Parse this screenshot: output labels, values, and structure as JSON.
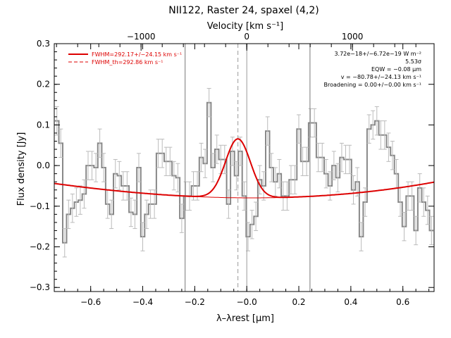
{
  "chart_data": {
    "type": "line",
    "title": "NII122, Raster 24, spaxel (4,2)",
    "xlabel": "λ–λrest [μm]",
    "ylabel": "Flux density [Jy]",
    "top_axis_label": "Velocity [km s⁻¹]",
    "xlim": [
      -0.74,
      0.72
    ],
    "ylim": [
      -0.31,
      0.3
    ],
    "x_ticks": [
      -0.6,
      -0.4,
      -0.2,
      0.0,
      0.2,
      0.4,
      0.6
    ],
    "x_tick_labels": [
      "−0.6",
      "−0.4",
      "−0.2",
      "−0.0",
      "0.2",
      "0.4",
      "0.6"
    ],
    "y_ticks": [
      -0.3,
      -0.2,
      -0.1,
      0.0,
      0.1,
      0.2,
      0.3
    ],
    "y_tick_labels": [
      "−0.3",
      "−0.2",
      "−0.1",
      "0.0",
      "0.1",
      "0.2",
      "0.3"
    ],
    "top_ticks": [
      -1000,
      0,
      1000
    ],
    "top_tick_labels": [
      "−1000",
      "0",
      "1000"
    ],
    "vertical_lines": [
      -0.237,
      0.243
    ],
    "dashed_line_x": -0.034,
    "zero_line_x": 0.0,
    "legend": [
      {
        "label": "FWHM=292.17+/−24.15 km s⁻¹",
        "style": "solid",
        "color": "#dd0000"
      },
      {
        "label": "FWHM_th=292.86 km s⁻¹",
        "style": "dashed",
        "color": "#dd0000"
      }
    ],
    "annotations": [
      "3.72e−18+/−6.72e−19 W m⁻²",
      "5.53σ",
      "EQW = −0.08 μm",
      "v = −80.78+/−24.13 km s⁻¹",
      "Broadening = 0.00+/−0.00 km s⁻¹"
    ],
    "model": {
      "center": -0.034,
      "amplitude": 0.145,
      "sigma": 0.048,
      "baseline_coeffs": [
        -0.0795,
        -0.0025,
        0.06994,
        0.011415
      ]
    },
    "spectrum": {
      "x": [
        -0.73,
        -0.715,
        -0.7,
        -0.685,
        -0.67,
        -0.655,
        -0.64,
        -0.625,
        -0.61,
        -0.595,
        -0.58,
        -0.565,
        -0.55,
        -0.535,
        -0.52,
        -0.505,
        -0.49,
        -0.475,
        -0.46,
        -0.445,
        -0.43,
        -0.415,
        -0.4,
        -0.385,
        -0.37,
        -0.355,
        -0.34,
        -0.325,
        -0.31,
        -0.295,
        -0.28,
        -0.265,
        -0.25,
        -0.235,
        -0.22,
        -0.205,
        -0.19,
        -0.175,
        -0.16,
        -0.145,
        -0.13,
        -0.115,
        -0.1,
        -0.085,
        -0.07,
        -0.055,
        -0.04,
        -0.025,
        -0.01,
        0.005,
        0.02,
        0.035,
        0.05,
        0.065,
        0.08,
        0.095,
        0.11,
        0.125,
        0.14,
        0.155,
        0.17,
        0.185,
        0.2,
        0.215,
        0.23,
        0.245,
        0.26,
        0.275,
        0.29,
        0.305,
        0.32,
        0.335,
        0.35,
        0.365,
        0.38,
        0.395,
        0.41,
        0.425,
        0.44,
        0.455,
        0.47,
        0.485,
        0.5,
        0.515,
        0.53,
        0.545,
        0.56,
        0.575,
        0.59,
        0.605,
        0.62,
        0.635,
        0.65,
        0.665,
        0.68,
        0.695,
        0.71
      ],
      "y": [
        0.11,
        0.055,
        -0.19,
        -0.12,
        -0.105,
        -0.09,
        -0.085,
        -0.07,
        0.0,
        0.0,
        -0.005,
        0.055,
        -0.005,
        -0.095,
        -0.12,
        -0.02,
        -0.025,
        -0.05,
        -0.05,
        -0.115,
        -0.12,
        -0.005,
        -0.175,
        -0.12,
        -0.095,
        -0.095,
        0.03,
        0.03,
        0.01,
        0.01,
        -0.025,
        -0.03,
        -0.13,
        -0.075,
        -0.075,
        -0.05,
        -0.05,
        0.02,
        0.005,
        0.155,
        -0.005,
        0.04,
        0.015,
        0.015,
        -0.095,
        0.035,
        -0.025,
        0.035,
        -0.075,
        -0.175,
        -0.145,
        -0.125,
        -0.035,
        -0.05,
        0.085,
        -0.005,
        -0.04,
        -0.02,
        -0.075,
        -0.075,
        -0.035,
        -0.035,
        0.09,
        0.01,
        0.01,
        0.105,
        0.105,
        0.02,
        0.02,
        -0.02,
        -0.05,
        0.0,
        -0.03,
        0.02,
        0.015,
        0.015,
        -0.06,
        -0.04,
        -0.175,
        -0.09,
        0.09,
        0.1,
        0.11,
        0.075,
        0.075,
        0.045,
        0.025,
        -0.02,
        -0.09,
        -0.15,
        -0.075,
        -0.075,
        -0.16,
        -0.055,
        -0.09,
        -0.11,
        -0.16
      ],
      "err": 0.035
    }
  }
}
